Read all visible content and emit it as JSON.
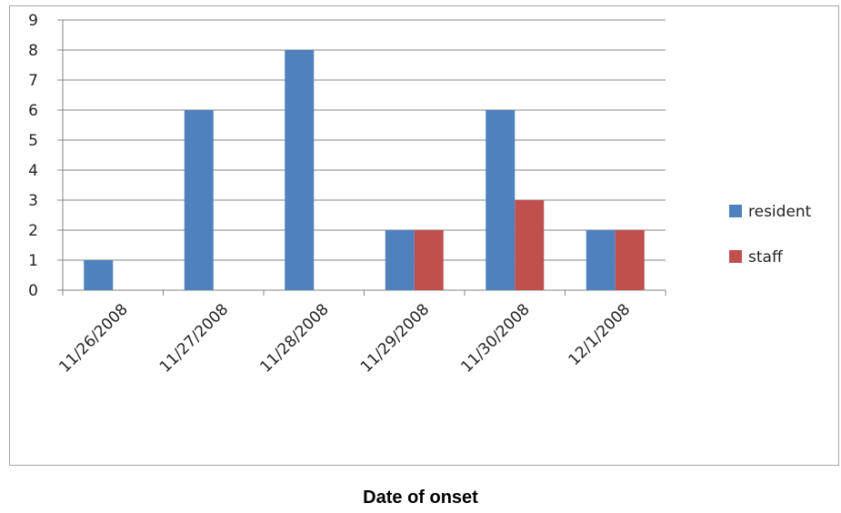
{
  "chart_data": {
    "type": "bar",
    "categories": [
      "11/26/2008",
      "11/27/2008",
      "11/28/2008",
      "11/29/2008",
      "11/30/2008",
      "12/1/2008"
    ],
    "series": [
      {
        "name": "resident",
        "color": "#4f81bd",
        "values": [
          1,
          6,
          8,
          2,
          6,
          2
        ]
      },
      {
        "name": "staff",
        "color": "#c0504d",
        "values": [
          0,
          0,
          0,
          2,
          3,
          2
        ]
      }
    ],
    "title": "",
    "xlabel": "Date of onset",
    "ylabel": "",
    "ylim": [
      0,
      9
    ],
    "yticks": [
      "0",
      "1",
      "2",
      "3",
      "4",
      "5",
      "6",
      "7",
      "8",
      "9"
    ],
    "grid": true,
    "legend_position": "right"
  }
}
